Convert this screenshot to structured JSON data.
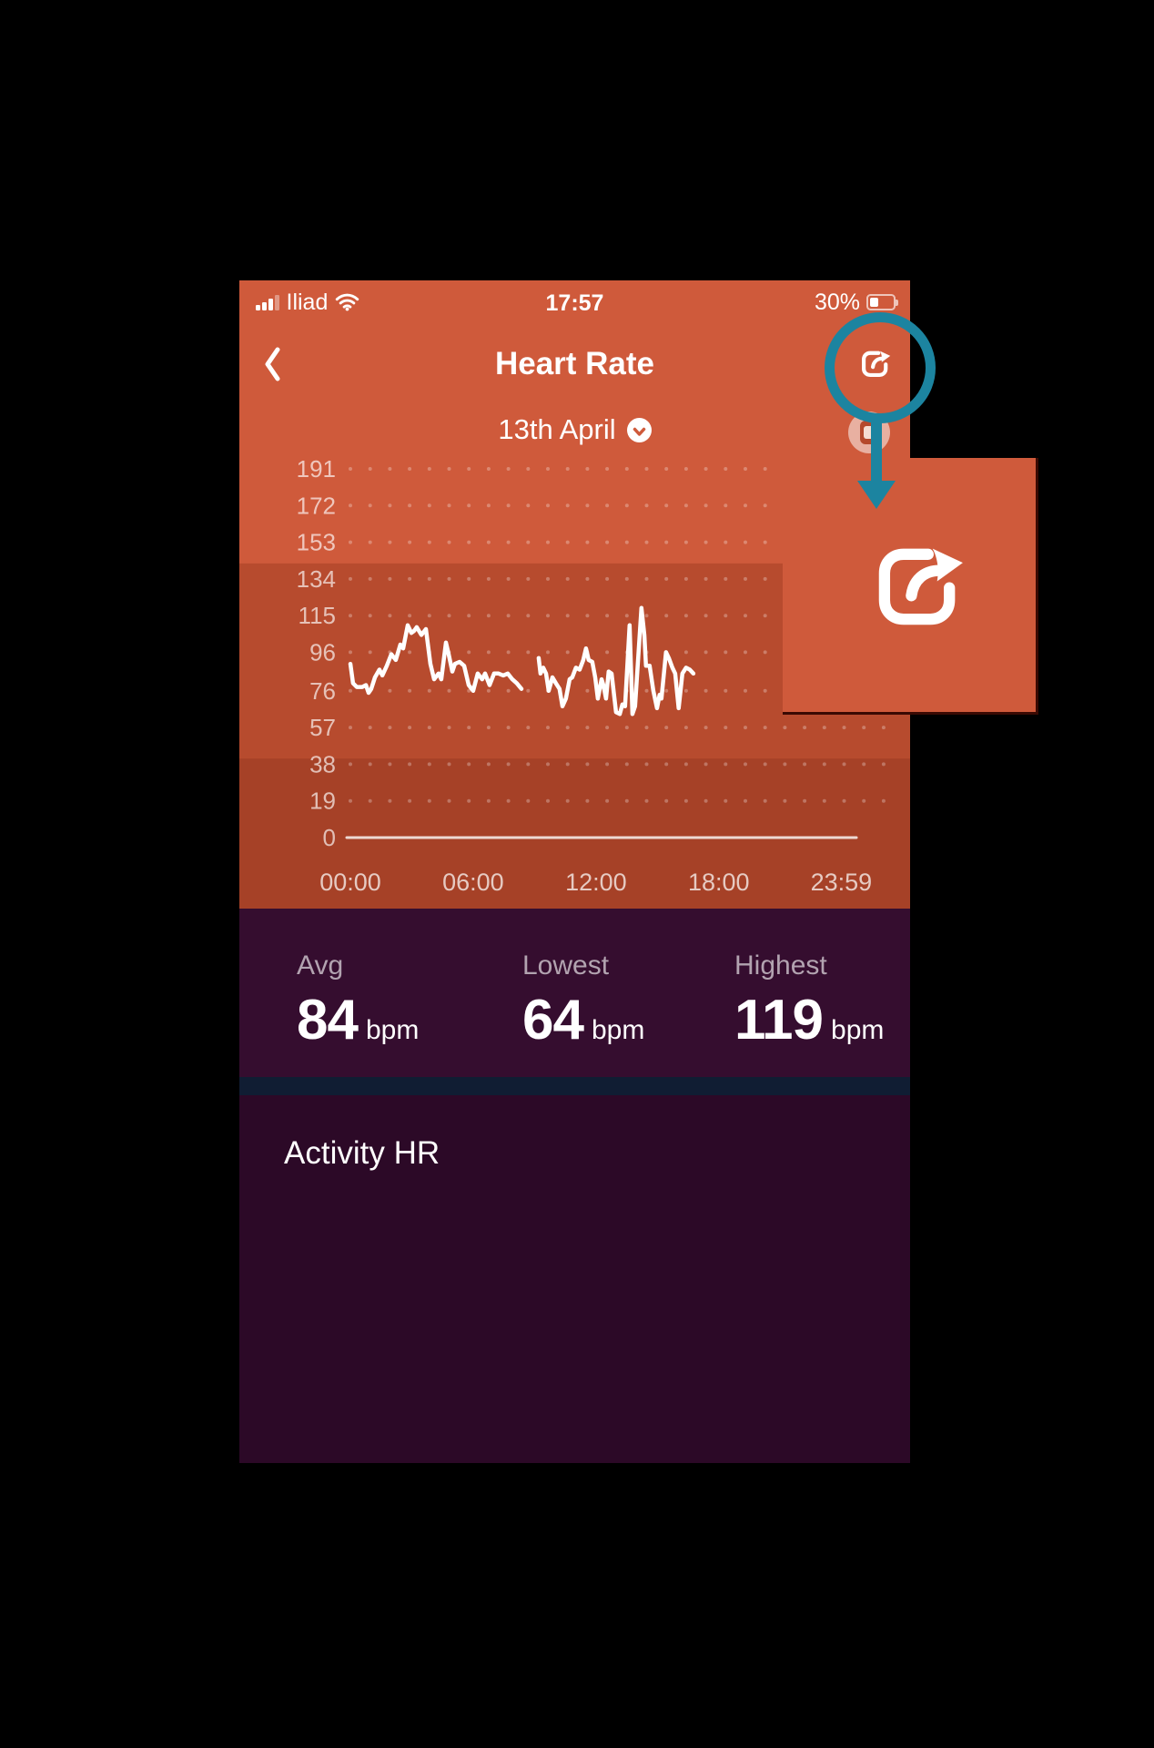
{
  "colors": {
    "app_orange": "#cf5a3b",
    "chart_band_mid": "#b74b2e",
    "chart_band_low": "#a64127",
    "stats_panel_purple": "#350d2f",
    "activity_panel_purple": "#2c0927",
    "divider_navy": "#101d33",
    "annotation_teal": "#1c84a0",
    "heart_rate_line": "#ffffff"
  },
  "status_bar": {
    "carrier": "Iliad",
    "time": "17:57",
    "battery_percent": "30%",
    "signal_icon": "cellular-signal-icon",
    "wifi_icon": "wifi-icon",
    "battery_icon": "battery-icon"
  },
  "header": {
    "back_icon": "chevron-left-icon",
    "title": "Heart Rate",
    "share_icon": "share-icon"
  },
  "date_selector": {
    "label": "13th April",
    "dropdown_icon": "chevron-down-circle-icon"
  },
  "chart_data": {
    "type": "line",
    "x_axis": {
      "range_hours": [
        0,
        24
      ],
      "ticks": [
        {
          "label": "00:00",
          "hour": 0
        },
        {
          "label": "06:00",
          "hour": 6
        },
        {
          "label": "12:00",
          "hour": 12
        },
        {
          "label": "18:00",
          "hour": 18
        },
        {
          "label": "23:59",
          "hour": 23.983
        }
      ]
    },
    "y_axis": {
      "unit": "bpm",
      "range": [
        0,
        191
      ],
      "ticks": [
        191,
        172,
        153,
        134,
        115,
        96,
        76,
        57,
        38,
        19,
        0
      ],
      "grid": "dotted"
    },
    "zones": [
      {
        "from_bpm": 142,
        "to_bpm": 191,
        "color": "#cf5a3b"
      },
      {
        "from_bpm": 41,
        "to_bpm": 142,
        "color": "#b74b2e"
      },
      {
        "from_bpm": 0,
        "to_bpm": 41,
        "color": "#a64127"
      }
    ],
    "series": [
      {
        "name": "heart-rate-segment-1",
        "x_hours": [
          0,
          0.13,
          0.31,
          0.58,
          0.76,
          0.89,
          1.02,
          1.2,
          1.42,
          1.56,
          1.78,
          2.0,
          2.22,
          2.44,
          2.58,
          2.8,
          2.98,
          3.11,
          3.24,
          3.47,
          3.69,
          3.91,
          4.09,
          4.31,
          4.44,
          4.67,
          4.8,
          4.98,
          5.11,
          5.33,
          5.56,
          5.78,
          6.0,
          6.22,
          6.44,
          6.58,
          6.8,
          7.02,
          7.24,
          7.47,
          7.69,
          7.91,
          8.13,
          8.36
        ],
        "bpm": [
          90,
          80,
          78,
          78,
          79,
          75,
          77,
          83,
          87,
          84,
          89,
          95,
          92,
          100,
          98,
          110,
          106,
          107,
          109,
          105,
          108,
          90,
          82,
          85,
          82,
          101,
          95,
          86,
          90,
          91,
          89,
          79,
          76,
          85,
          82,
          85,
          79,
          85,
          85,
          84,
          85,
          82,
          80,
          77
        ]
      },
      {
        "name": "heart-rate-segment-2",
        "x_hours": [
          9.2,
          9.29,
          9.42,
          9.56,
          9.69,
          9.87,
          10.04,
          10.22,
          10.36,
          10.53,
          10.71,
          10.84,
          11.02,
          11.2,
          11.38,
          11.51,
          11.64,
          11.82,
          11.96,
          12.09,
          12.27,
          12.36,
          12.49,
          12.62,
          12.76,
          12.98,
          13.16,
          13.29,
          13.42,
          13.64,
          13.78,
          13.91,
          14.22,
          14.36,
          14.44,
          14.62,
          14.8,
          14.98,
          15.11,
          15.2,
          15.42,
          15.56,
          15.73,
          15.87,
          16.04,
          16.22,
          16.4,
          16.58,
          16.76
        ],
        "bpm": [
          93,
          85,
          88,
          85,
          76,
          83,
          80,
          77,
          68,
          72,
          82,
          83,
          88,
          87,
          92,
          98,
          92,
          91,
          83,
          72,
          82,
          79,
          72,
          86,
          85,
          65,
          64,
          69,
          68,
          110,
          64,
          68,
          119,
          105,
          89,
          89,
          76,
          67,
          74,
          72,
          96,
          93,
          88,
          85,
          67,
          85,
          88,
          87,
          85
        ]
      }
    ]
  },
  "summary": {
    "stats": [
      {
        "label": "Avg",
        "value": "84",
        "unit": "bpm"
      },
      {
        "label": "Lowest",
        "value": "64",
        "unit": "bpm"
      },
      {
        "label": "Highest",
        "value": "119",
        "unit": "bpm"
      }
    ]
  },
  "sections": {
    "activity_title": "Activity HR"
  },
  "watch_status_icon": "smartwatch-icon",
  "annotation": {
    "type": "callout",
    "highlight": "share-button",
    "elements": [
      "teal-circle-highlight",
      "teal-arrow-down",
      "enlarged-share-icon-square"
    ]
  }
}
